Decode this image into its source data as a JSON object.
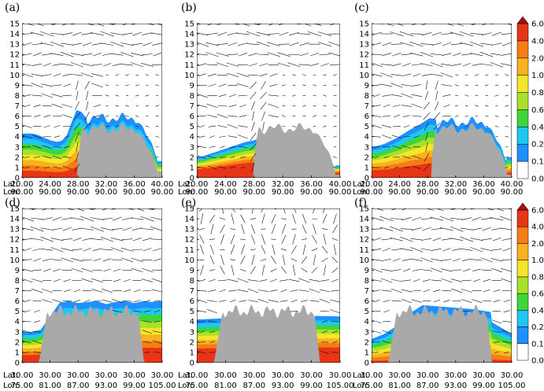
{
  "figure": {
    "y_ticks": [
      "0",
      "1",
      "2",
      "3",
      "4",
      "5",
      "6",
      "7",
      "8",
      "9",
      "10",
      "11",
      "12",
      "13",
      "14",
      "15"
    ],
    "lat_prefix": "Lat:",
    "lon_prefix": "Lon:",
    "colorbar_labels": [
      "0.0",
      "0.1",
      "0.2",
      "0.4",
      "0.6",
      "0.8",
      "1.0",
      "2.0",
      "4.0",
      "6.0"
    ]
  },
  "chart_data": [
    {
      "panel": "(a)",
      "type": "cross-section",
      "ylim": [
        0,
        15
      ],
      "lat_ticks": [
        "20.00",
        "24.00",
        "28.00",
        "32.00",
        "36.00",
        "40.00"
      ],
      "lon_ticks": [
        "90.00",
        "90.00",
        "90.00",
        "90.00",
        "90.00",
        "90.00"
      ],
      "terrain_start": 0.43,
      "shading_height": [
        4.3,
        4.3,
        4.3,
        4.2,
        4.0,
        3.8,
        3.6,
        3.5,
        3.6,
        4.1,
        5.4,
        6.6,
        6.4,
        5.8
      ],
      "band_scale": 1.0
    },
    {
      "panel": "(b)",
      "type": "cross-section",
      "ylim": [
        0,
        15
      ],
      "lat_ticks": [
        "20.00",
        "24.00",
        "28.00",
        "32.00",
        "36.00",
        "40.00"
      ],
      "lon_ticks": [
        "90.00",
        "90.00",
        "90.00",
        "90.00",
        "90.00",
        "90.00"
      ],
      "terrain_start": 0.4,
      "shading_height": [
        2.0,
        2.1,
        2.3,
        2.5,
        2.7,
        2.9,
        3.1,
        3.3,
        3.5,
        3.6,
        3.8
      ],
      "band_scale": 0.7
    },
    {
      "panel": "(c)",
      "type": "cross-section",
      "ylim": [
        0,
        15
      ],
      "lat_ticks": [
        "20.00",
        "24.00",
        "28.00",
        "32.00",
        "36.00",
        "40.00"
      ],
      "lon_ticks": [
        "90.00",
        "90.00",
        "90.00",
        "90.00",
        "90.00",
        "90.00"
      ],
      "terrain_start": 0.43,
      "shading_height": [
        3.0,
        3.1,
        3.3,
        3.6,
        3.9,
        4.3,
        4.7,
        5.0,
        5.4,
        5.8,
        5.7
      ],
      "band_scale": 0.9
    },
    {
      "panel": "(d)",
      "type": "cross-section",
      "ylim": [
        0,
        15
      ],
      "lat_ticks": [
        "30.00",
        "30.00",
        "30.00",
        "30.00",
        "30.00",
        "30.00"
      ],
      "lon_ticks": [
        "75.00",
        "81.00",
        "87.00",
        "93.00",
        "99.00",
        "105.00"
      ],
      "terrain_start": 0.12,
      "shading_height": [
        3.0,
        3.0,
        3.2,
        4.5,
        5.8,
        6.0,
        5.8,
        5.9,
        6.0,
        5.7,
        5.9,
        6.0,
        5.8,
        6.0,
        5.9,
        6.0
      ],
      "band_scale": 0.9
    },
    {
      "panel": "(e)",
      "type": "cross-section",
      "ylim": [
        0,
        15
      ],
      "lat_ticks": [
        "30.00",
        "30.00",
        "30.00",
        "30.00",
        "30.00",
        "30.00"
      ],
      "lon_ticks": [
        "75.00",
        "81.00",
        "87.00",
        "93.00",
        "99.00",
        "105.00"
      ],
      "terrain_start": 0.12,
      "shading_height": [
        4.2,
        4.4,
        4.6,
        4.5
      ],
      "band_scale": 0.8
    },
    {
      "panel": "(f)",
      "type": "cross-section",
      "ylim": [
        0,
        15
      ],
      "lat_ticks": [
        "30.00",
        "30.00",
        "30.00",
        "30.00",
        "30.00",
        "30.00"
      ],
      "lon_ticks": [
        "75.00",
        "81.00",
        "87.00",
        "93.00",
        "99.00",
        "105.00"
      ],
      "terrain_start": 0.12,
      "shading_height": [
        2.3,
        2.8,
        3.6,
        4.8,
        5.6,
        5.5,
        5.4,
        5.3,
        5.2,
        5.0,
        4.8,
        4.4
      ],
      "band_scale": 1.1
    }
  ],
  "colors": {
    "terrain": "#a9a9a9",
    "bands": [
      "#ffffff",
      "#1e90ff",
      "#1ec8f0",
      "#3fd63a",
      "#a8e02a",
      "#f5e62b",
      "#f9b21f",
      "#f57d14",
      "#e83417",
      "#a50f0f"
    ]
  }
}
